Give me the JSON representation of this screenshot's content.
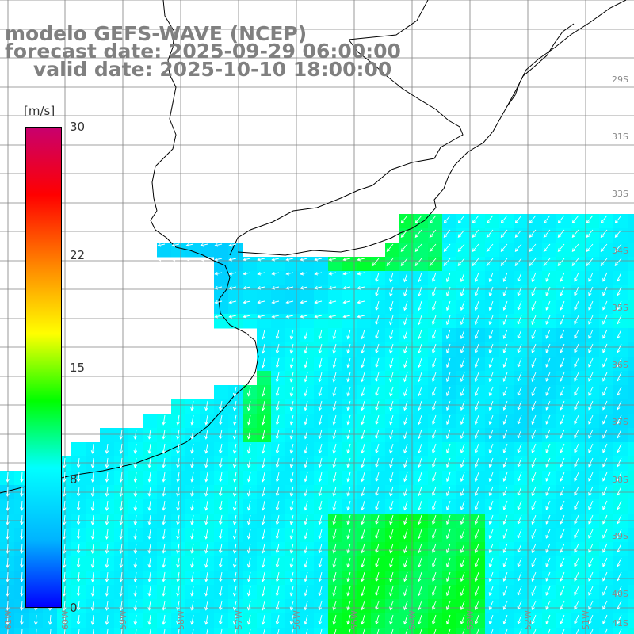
{
  "title": {
    "model": "modelo GEFS-WAVE (NCEP)",
    "forecast": "forecast date: 2025-09-29 06:00:00",
    "valid": "valid date: 2025-10-10 18:00:00"
  },
  "colorbar": {
    "units": "[m/s]",
    "ticks": [
      "30",
      "22",
      "15",
      "8",
      "0"
    ],
    "tick_values": [
      30,
      22,
      15,
      8,
      0
    ],
    "min": 0,
    "max": 30,
    "colors": [
      "#0000ff",
      "#00b4ff",
      "#00ffff",
      "#00ff00",
      "#ffff00",
      "#ff8800",
      "#ff0000",
      "#c8006e"
    ]
  },
  "map": {
    "variable": "wind speed",
    "lat_labels": [
      "29S",
      "31S",
      "33S",
      "34S",
      "35S",
      "36S",
      "37S",
      "38S",
      "39S",
      "40S",
      "41S"
    ],
    "lon_labels": [
      "61W",
      "60W",
      "59W",
      "58W",
      "57W",
      "56W",
      "55W",
      "54W",
      "53W",
      "52W",
      "51W"
    ],
    "land_color": "#ffffff",
    "grid_color": "#808080",
    "coast_color": "#000000"
  }
}
